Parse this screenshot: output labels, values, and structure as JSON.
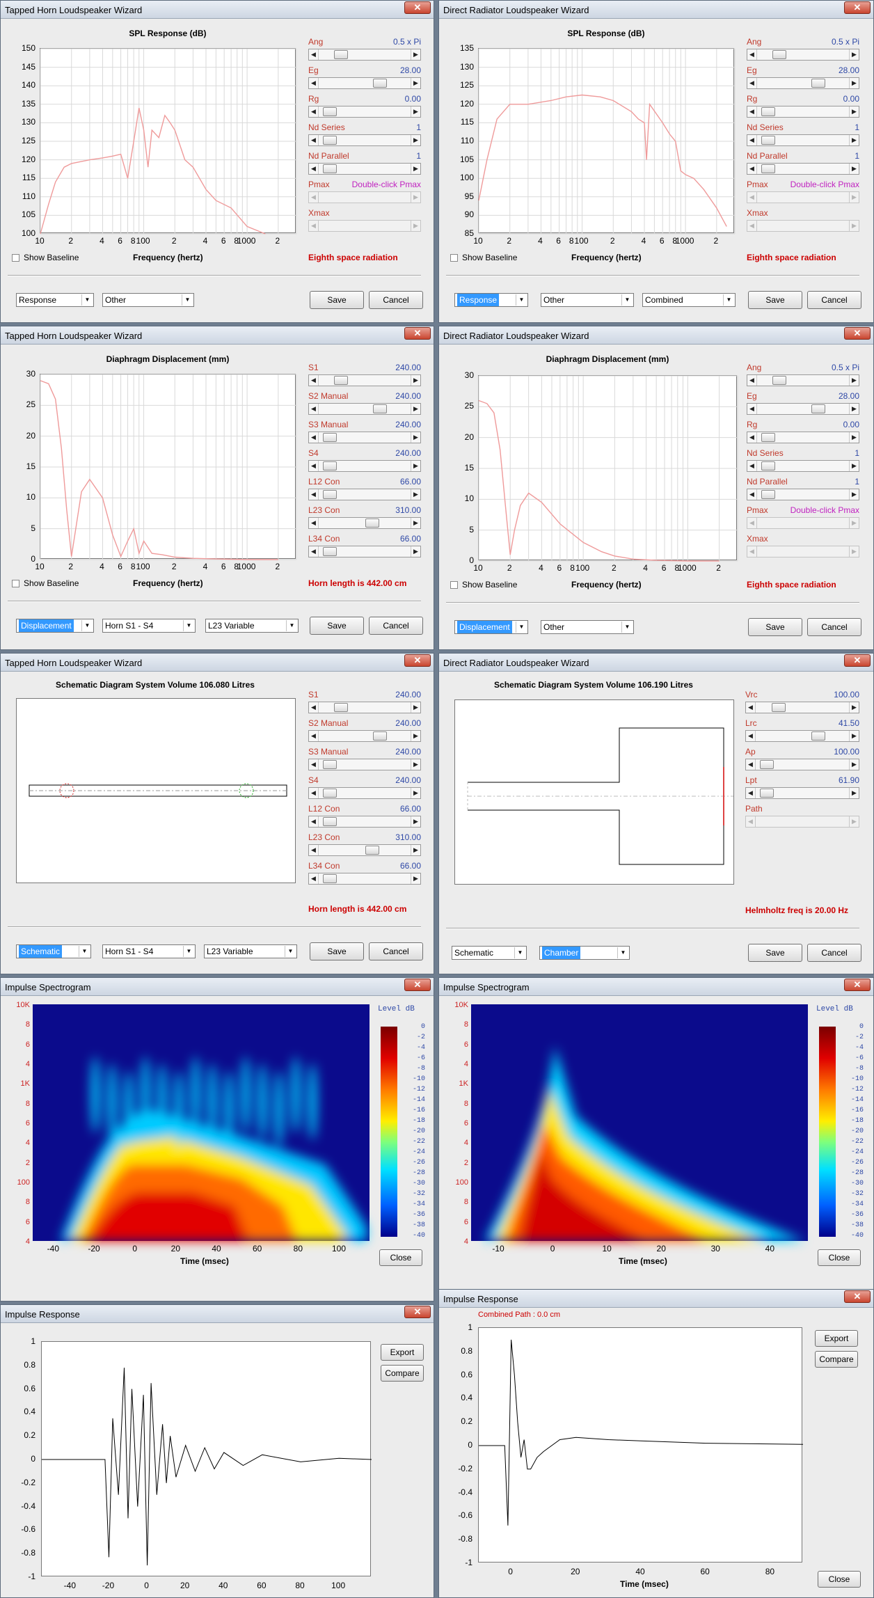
{
  "common": {
    "close_glyph": "✕",
    "show_baseline": "Show Baseline",
    "freq_xlabel": "Frequency (hertz)",
    "save": "Save",
    "cancel": "Cancel",
    "close": "Close",
    "export": "Export",
    "compare": "Compare",
    "slider_left": "◀",
    "slider_right": "▶",
    "dropdown": "▼",
    "freq_ticks": [
      "10",
      "2",
      "4",
      "6",
      "8",
      "100",
      "2",
      "4",
      "6",
      "8",
      "1000",
      "2"
    ],
    "level_label": "Level  dB",
    "level_ticks": [
      "0",
      "-2",
      "-4",
      "-6",
      "-8",
      "-10",
      "-12",
      "-14",
      "-16",
      "-18",
      "-20",
      "-22",
      "-24",
      "-26",
      "-28",
      "-30",
      "-32",
      "-34",
      "-36",
      "-38",
      "-40"
    ],
    "spec_y_ticks": [
      "10K",
      "8",
      "6",
      "4",
      "1K",
      "8",
      "6",
      "4",
      "2",
      "100",
      "8",
      "6",
      "4"
    ],
    "time_xlabel": "Time (msec)"
  },
  "w1": {
    "title": "Tapped Horn Loudspeaker Wizard",
    "plot_title": "SPL Response (dB)",
    "y_ticks": [
      "150",
      "145",
      "140",
      "135",
      "130",
      "125",
      "120",
      "115",
      "110",
      "105",
      "100"
    ],
    "controls": [
      {
        "label": "Ang",
        "value": "0.5 x Pi"
      },
      {
        "label": "Eg",
        "value": "28.00"
      },
      {
        "label": "Rg",
        "value": "0.00"
      },
      {
        "label": "Nd  Series",
        "value": "1"
      },
      {
        "label": "Nd  Parallel",
        "value": "1"
      },
      {
        "label": "Pmax",
        "value": "Double-click Pmax"
      },
      {
        "label": "Xmax",
        "value": ""
      }
    ],
    "status": "Eighth space radiation",
    "dropdowns": [
      "Response",
      "Other"
    ]
  },
  "w2": {
    "title": "Direct Radiator Loudspeaker Wizard",
    "plot_title": "SPL Response (dB)",
    "y_ticks": [
      "135",
      "130",
      "125",
      "120",
      "115",
      "110",
      "105",
      "100",
      "95",
      "90",
      "85"
    ],
    "controls": [
      {
        "label": "Ang",
        "value": "0.5 x Pi"
      },
      {
        "label": "Eg",
        "value": "28.00"
      },
      {
        "label": "Rg",
        "value": "0.00"
      },
      {
        "label": "Nd  Series",
        "value": "1"
      },
      {
        "label": "Nd  Parallel",
        "value": "1"
      },
      {
        "label": "Pmax",
        "value": "Double-click Pmax"
      },
      {
        "label": "Xmax",
        "value": ""
      }
    ],
    "status": "Eighth space radiation",
    "dropdowns": [
      "Response",
      "Other",
      "Combined"
    ]
  },
  "w3": {
    "title": "Tapped Horn Loudspeaker Wizard",
    "plot_title": "Diaphragm Displacement (mm)",
    "y_ticks": [
      "30",
      "25",
      "20",
      "15",
      "10",
      "5",
      "0"
    ],
    "controls": [
      {
        "label": "S1",
        "value": "240.00"
      },
      {
        "label": "S2  Manual",
        "value": "240.00"
      },
      {
        "label": "S3  Manual",
        "value": "240.00"
      },
      {
        "label": "S4",
        "value": "240.00"
      },
      {
        "label": "L12  Con",
        "value": "66.00"
      },
      {
        "label": "L23  Con",
        "value": "310.00"
      },
      {
        "label": "L34  Con",
        "value": "66.00"
      }
    ],
    "status": "Horn length is 442.00 cm",
    "dropdowns": [
      "Displacement",
      "Horn S1 - S4",
      "L23 Variable"
    ]
  },
  "w4": {
    "title": "Direct Radiator Loudspeaker Wizard",
    "plot_title": "Diaphragm Displacement (mm)",
    "y_ticks": [
      "30",
      "25",
      "20",
      "15",
      "10",
      "5",
      "0"
    ],
    "controls": [
      {
        "label": "Ang",
        "value": "0.5 x Pi"
      },
      {
        "label": "Eg",
        "value": "28.00"
      },
      {
        "label": "Rg",
        "value": "0.00"
      },
      {
        "label": "Nd  Series",
        "value": "1"
      },
      {
        "label": "Nd  Parallel",
        "value": "1"
      },
      {
        "label": "Pmax",
        "value": "Double-click Pmax"
      },
      {
        "label": "Xmax",
        "value": ""
      }
    ],
    "status": "Eighth space radiation",
    "dropdowns": [
      "Displacement",
      "Other"
    ]
  },
  "w5": {
    "title": "Tapped Horn Loudspeaker Wizard",
    "plot_title": "Schematic Diagram   System Volume 106.080 Litres",
    "controls": [
      {
        "label": "S1",
        "value": "240.00"
      },
      {
        "label": "S2  Manual",
        "value": "240.00"
      },
      {
        "label": "S3  Manual",
        "value": "240.00"
      },
      {
        "label": "S4",
        "value": "240.00"
      },
      {
        "label": "L12  Con",
        "value": "66.00"
      },
      {
        "label": "L23  Con",
        "value": "310.00"
      },
      {
        "label": "L34  Con",
        "value": "66.00"
      }
    ],
    "status": "Horn length is 442.00 cm",
    "dropdowns": [
      "Schematic",
      "Horn S1 - S4",
      "L23 Variable"
    ]
  },
  "w6": {
    "title": "Direct Radiator Loudspeaker Wizard",
    "plot_title": "Schematic Diagram   System Volume 106.190 Litres",
    "controls": [
      {
        "label": "Vrc",
        "value": "100.00"
      },
      {
        "label": "Lrc",
        "value": "41.50"
      },
      {
        "label": "Ap",
        "value": "100.00"
      },
      {
        "label": "Lpt",
        "value": "61.90"
      },
      {
        "label": "Path",
        "value": ""
      }
    ],
    "status": "Helmholtz freq is 20.00 Hz",
    "dropdowns": [
      "Schematic",
      "Chamber"
    ]
  },
  "w7": {
    "title": "Impulse Spectrogram",
    "x_ticks": [
      "-40",
      "-20",
      "0",
      "20",
      "40",
      "60",
      "80",
      "100"
    ]
  },
  "w8": {
    "title": "Impulse Spectrogram",
    "x_ticks": [
      "-10",
      "0",
      "10",
      "20",
      "30",
      "40"
    ]
  },
  "w9": {
    "title": "Impulse Response",
    "y_ticks": [
      "1",
      "0.8",
      "0.6",
      "0.4",
      "0.2",
      "0",
      "-0.2",
      "-0.4",
      "-0.6",
      "-0.8",
      "-1"
    ],
    "x_ticks": [
      "-40",
      "-20",
      "0",
      "20",
      "40",
      "60",
      "80",
      "100"
    ]
  },
  "w10": {
    "title": "Impulse Response",
    "header": "Combined    Path : 0.0 cm",
    "y_ticks": [
      "1",
      "0.8",
      "0.6",
      "0.4",
      "0.2",
      "0",
      "-0.2",
      "-0.4",
      "-0.6",
      "-0.8",
      "-1"
    ],
    "x_ticks": [
      "0",
      "20",
      "40",
      "60",
      "80"
    ]
  },
  "chart_data": [
    {
      "type": "line",
      "title": "SPL Response (dB)",
      "xlabel": "Frequency (hertz)",
      "ylabel": "",
      "log_x": true,
      "xlim": [
        10,
        3000
      ],
      "ylim": [
        100,
        150
      ],
      "x": [
        10,
        12,
        14,
        17,
        20,
        30,
        40,
        50,
        60,
        70,
        80,
        90,
        100,
        110,
        120,
        140,
        160,
        180,
        200,
        250,
        300,
        400,
        500,
        700,
        1000,
        1500
      ],
      "y": [
        100,
        108,
        114,
        118,
        119,
        120,
        120.5,
        121,
        121.5,
        115,
        125,
        134,
        128,
        118,
        128,
        126,
        132,
        130,
        128,
        120,
        118,
        112,
        109,
        107,
        102,
        100
      ]
    },
    {
      "type": "line",
      "title": "SPL Response (dB)",
      "xlabel": "Frequency (hertz)",
      "ylabel": "",
      "log_x": true,
      "xlim": [
        10,
        3000
      ],
      "ylim": [
        85,
        135
      ],
      "x": [
        10,
        12,
        15,
        20,
        30,
        50,
        70,
        100,
        150,
        200,
        300,
        350,
        400,
        420,
        450,
        600,
        700,
        800,
        900,
        1000,
        1200,
        1500,
        2000,
        2500
      ],
      "y": [
        94,
        105,
        116,
        120,
        120,
        121,
        122,
        122.5,
        122,
        121,
        118,
        116,
        115,
        105,
        120,
        115,
        112,
        110,
        102,
        101,
        100,
        97,
        92,
        87
      ]
    },
    {
      "type": "line",
      "title": "Diaphragm Displacement (mm)",
      "xlabel": "Frequency (hertz)",
      "ylabel": "",
      "log_x": true,
      "xlim": [
        10,
        3000
      ],
      "ylim": [
        0,
        30
      ],
      "x": [
        10,
        12,
        14,
        16,
        18,
        20,
        25,
        30,
        40,
        50,
        60,
        70,
        80,
        90,
        100,
        120,
        150,
        200,
        300,
        500,
        1000,
        2000
      ],
      "y": [
        29,
        28.5,
        26,
        18,
        8,
        0.5,
        11,
        13,
        10,
        4,
        0.5,
        3,
        5,
        1,
        3,
        1,
        0.8,
        0.4,
        0.2,
        0.1,
        0,
        0
      ]
    },
    {
      "type": "line",
      "title": "Diaphragm Displacement (mm)",
      "xlabel": "Frequency (hertz)",
      "ylabel": "",
      "log_x": true,
      "xlim": [
        10,
        3000
      ],
      "ylim": [
        0,
        30
      ],
      "x": [
        10,
        12,
        14,
        16,
        18,
        20,
        22,
        25,
        30,
        40,
        60,
        100,
        150,
        200,
        300,
        500,
        1000,
        2000
      ],
      "y": [
        26,
        25.5,
        24,
        18,
        9,
        1,
        5,
        9,
        11,
        9.5,
        6,
        3,
        1.5,
        0.8,
        0.3,
        0.1,
        0,
        0
      ]
    },
    {
      "type": "heatmap",
      "title": "",
      "xlabel": "Time (msec)",
      "ylabel": "",
      "xlim": [
        -50,
        115
      ],
      "ylim": [
        40,
        10000
      ],
      "log_y": true,
      "colorbar": [
        0,
        -40
      ]
    },
    {
      "type": "heatmap",
      "title": "",
      "xlabel": "Time (msec)",
      "ylabel": "",
      "xlim": [
        -15,
        47
      ],
      "ylim": [
        40,
        10000
      ],
      "log_y": true,
      "colorbar": [
        0,
        -40
      ]
    },
    {
      "type": "line",
      "title": "",
      "xlabel": "",
      "ylabel": "",
      "xlim": [
        -55,
        117
      ],
      "ylim": [
        -1,
        1
      ],
      "x": [
        -55,
        -22,
        -20,
        -18,
        -15,
        -12,
        -10,
        -8,
        -5,
        -2,
        0,
        2,
        5,
        8,
        10,
        12,
        15,
        20,
        25,
        30,
        35,
        40,
        50,
        60,
        80,
        100,
        117
      ],
      "y": [
        0,
        0,
        -0.83,
        0.35,
        -0.3,
        0.78,
        -0.5,
        0.6,
        -0.4,
        0.55,
        -0.9,
        0.65,
        -0.3,
        0.3,
        -0.2,
        0.2,
        -0.15,
        0.12,
        -0.1,
        0.1,
        -0.08,
        0.06,
        -0.05,
        0.04,
        -0.02,
        0.01,
        0
      ]
    },
    {
      "type": "line",
      "title": "Combined    Path : 0.0 cm",
      "xlabel": "Time (msec)",
      "ylabel": "",
      "xlim": [
        -10,
        90
      ],
      "ylim": [
        -1,
        1
      ],
      "x": [
        -10,
        -2,
        -1,
        0,
        1,
        2,
        3,
        4,
        5,
        6,
        8,
        10,
        15,
        20,
        30,
        40,
        60,
        90
      ],
      "y": [
        0,
        0,
        -0.68,
        0.9,
        0.6,
        0.2,
        -0.1,
        0.05,
        -0.2,
        -0.2,
        -0.1,
        -0.05,
        0.05,
        0.07,
        0.05,
        0.04,
        0.02,
        0.01
      ]
    }
  ]
}
